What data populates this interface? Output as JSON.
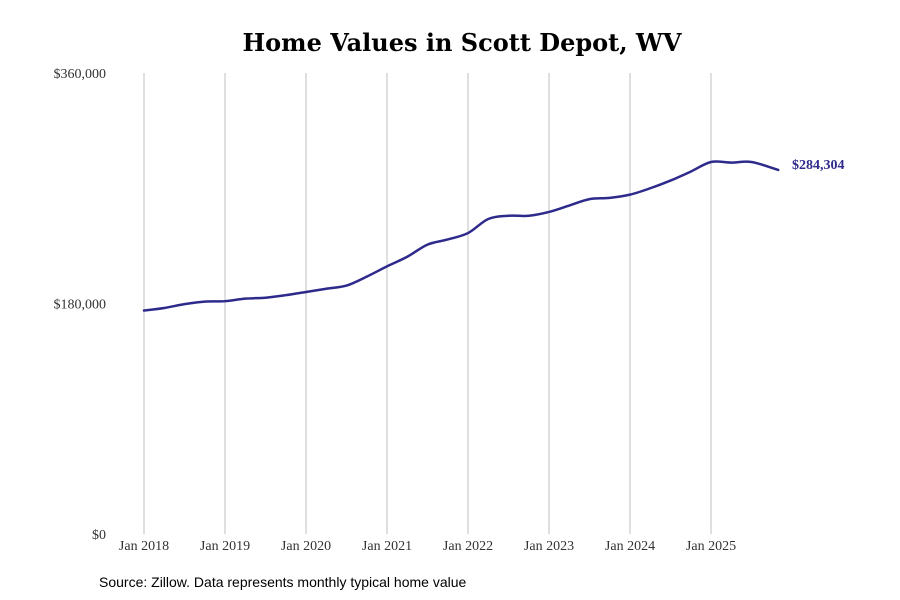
{
  "chart_data": {
    "type": "line",
    "title": "Home Values in Scott Depot, WV",
    "xlabel": "",
    "ylabel": "",
    "ylim": [
      0,
      360000
    ],
    "y_ticks": [
      {
        "value": 0,
        "label": "$0"
      },
      {
        "value": 180000,
        "label": "$180,000"
      },
      {
        "value": 360000,
        "label": "$360,000"
      }
    ],
    "x_ticks": [
      {
        "value": 2018.0,
        "label": "Jan 2018"
      },
      {
        "value": 2019.0,
        "label": "Jan 2019"
      },
      {
        "value": 2020.0,
        "label": "Jan 2020"
      },
      {
        "value": 2021.0,
        "label": "Jan 2021"
      },
      {
        "value": 2022.0,
        "label": "Jan 2022"
      },
      {
        "value": 2023.0,
        "label": "Jan 2023"
      },
      {
        "value": 2024.0,
        "label": "Jan 2024"
      },
      {
        "value": 2025.0,
        "label": "Jan 2025"
      }
    ],
    "xlim": [
      2018.0,
      2025.83
    ],
    "grid": "vertical",
    "series": [
      {
        "name": "Typical home value",
        "color": "#2e2a8c",
        "x": [
          2018.0,
          2018.25,
          2018.5,
          2018.75,
          2019.0,
          2019.25,
          2019.5,
          2019.75,
          2020.0,
          2020.25,
          2020.5,
          2020.75,
          2021.0,
          2021.25,
          2021.5,
          2021.75,
          2022.0,
          2022.25,
          2022.5,
          2022.75,
          2023.0,
          2023.25,
          2023.5,
          2023.75,
          2024.0,
          2024.25,
          2024.5,
          2024.75,
          2025.0,
          2025.25,
          2025.5,
          2025.83
        ],
        "values": [
          174500,
          176500,
          179500,
          181500,
          181800,
          183800,
          184500,
          186500,
          189000,
          191500,
          194000,
          201000,
          209000,
          216500,
          226000,
          230000,
          235000,
          246000,
          248500,
          248500,
          251500,
          256500,
          261500,
          262500,
          265000,
          270000,
          276000,
          283000,
          290500,
          290000,
          290500,
          284304
        ]
      }
    ],
    "end_label": "$284,304"
  },
  "source_note": "Source: Zillow. Data represents monthly typical home value"
}
